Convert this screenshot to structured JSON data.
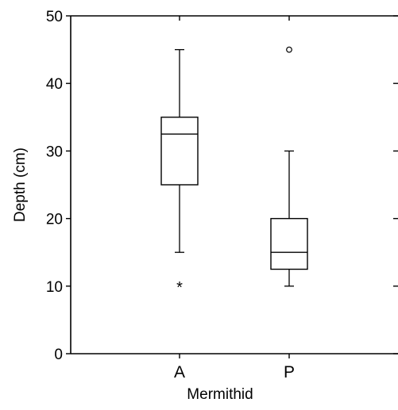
{
  "chart_data": {
    "type": "box",
    "xlabel": "Mermithid",
    "ylabel": "Depth (cm)",
    "ylim": [
      0,
      50
    ],
    "yticks": [
      0,
      10,
      20,
      30,
      40,
      50
    ],
    "grid": false,
    "categories": [
      "A",
      "P"
    ],
    "boxes": [
      {
        "category": "A",
        "whisker_low": 15,
        "q1": 25,
        "median": 32.5,
        "q3": 35,
        "whisker_high": 45,
        "outliers": [
          {
            "value": 10,
            "marker": "star"
          }
        ]
      },
      {
        "category": "P",
        "whisker_low": 10,
        "q1": 12.5,
        "median": 15,
        "q3": 20,
        "whisker_high": 30,
        "outliers": [
          {
            "value": 45,
            "marker": "circle"
          }
        ]
      }
    ]
  }
}
